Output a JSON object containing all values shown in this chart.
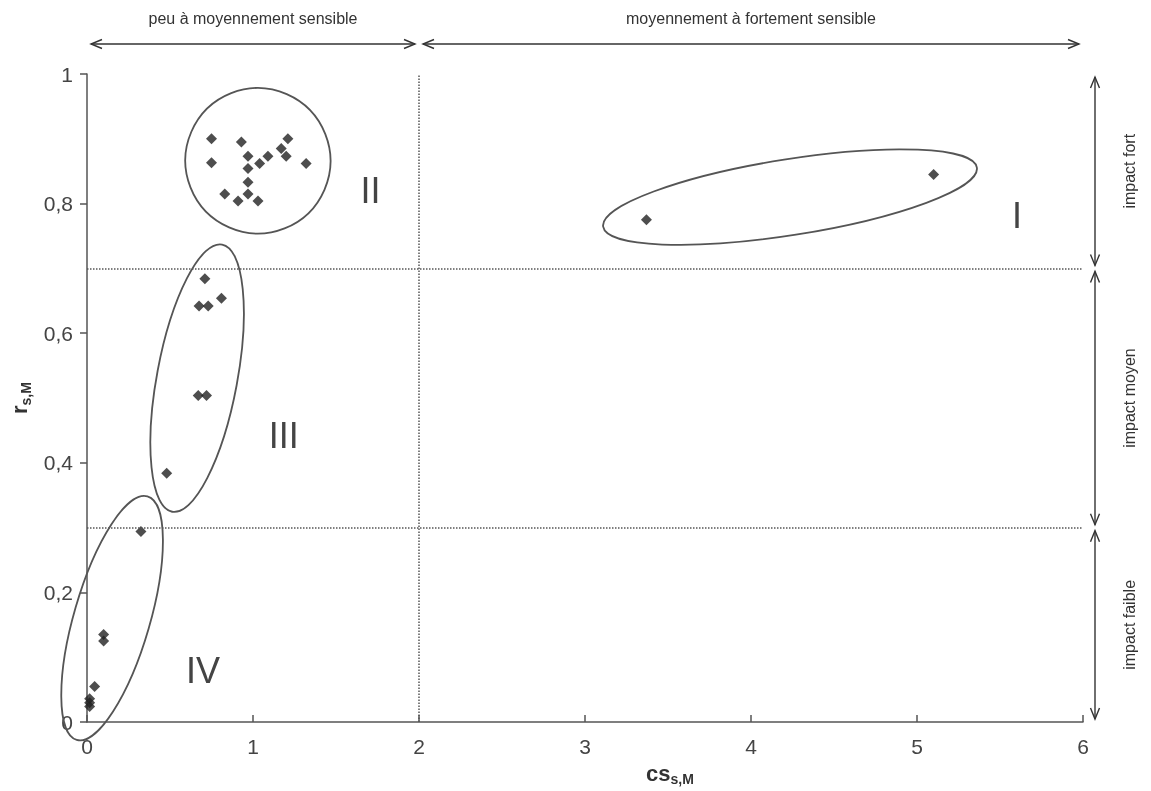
{
  "chart_data": {
    "type": "scatter",
    "xlabel": "cs$_{s,M}$",
    "ylabel": "r$_{s,M}$",
    "xlim": [
      0,
      6
    ],
    "xticks": [
      0,
      1,
      2,
      3,
      4,
      5,
      6
    ],
    "ylim": [
      0,
      1
    ],
    "yticks": [
      0,
      {
        "value": 0.2,
        "label": "0,2"
      },
      {
        "value": 0.4,
        "label": "0,4"
      },
      {
        "value": 0.6,
        "label": "0,6"
      },
      {
        "value": 0.8,
        "label": "0,8"
      },
      1
    ],
    "marker": "diamond",
    "grid": false,
    "series": [
      {
        "color": "#222222",
        "x": [
          3.37,
          5.1
        ],
        "values": [
          0.775,
          0.845
        ]
      },
      {
        "color": "#222222",
        "x": [
          0.75,
          0.93,
          1.21,
          1.17,
          1.2,
          1.09,
          0.97,
          1.04,
          0.75,
          1.32,
          0.97,
          0.97,
          0.83,
          0.97,
          0.91,
          1.03
        ],
        "values": [
          0.9,
          0.895,
          0.9,
          0.885,
          0.873,
          0.873,
          0.873,
          0.862,
          0.863,
          0.862,
          0.854,
          0.833,
          0.815,
          0.815,
          0.804,
          0.804
        ]
      },
      {
        "color": "#222222",
        "x": [
          0.71,
          0.675,
          0.73,
          0.81,
          0.67,
          0.72,
          0.48
        ],
        "values": [
          0.684,
          0.642,
          0.642,
          0.654,
          0.504,
          0.504,
          0.384
        ]
      },
      {
        "color": "#222222",
        "x": [
          0.325,
          0.1,
          0.1,
          0.046,
          0.016,
          0.016,
          0.016
        ],
        "values": [
          0.294,
          0.135,
          0.125,
          0.055,
          0.036,
          0.03,
          0.024
        ]
      }
    ],
    "ref_lines": [
      {
        "axis": "x",
        "value": 2,
        "line_style": "dotted"
      },
      {
        "axis": "y",
        "value": 0.7,
        "line_style": "dotted"
      },
      {
        "axis": "y",
        "value": 0.3,
        "line_style": "dotted"
      }
    ],
    "annotations": [
      "I",
      "II",
      "III",
      "IV",
      "peu à moyennement sensible",
      "moyennement à fortement sensible",
      "impact fort",
      "impact moyen",
      "impact faible"
    ]
  }
}
